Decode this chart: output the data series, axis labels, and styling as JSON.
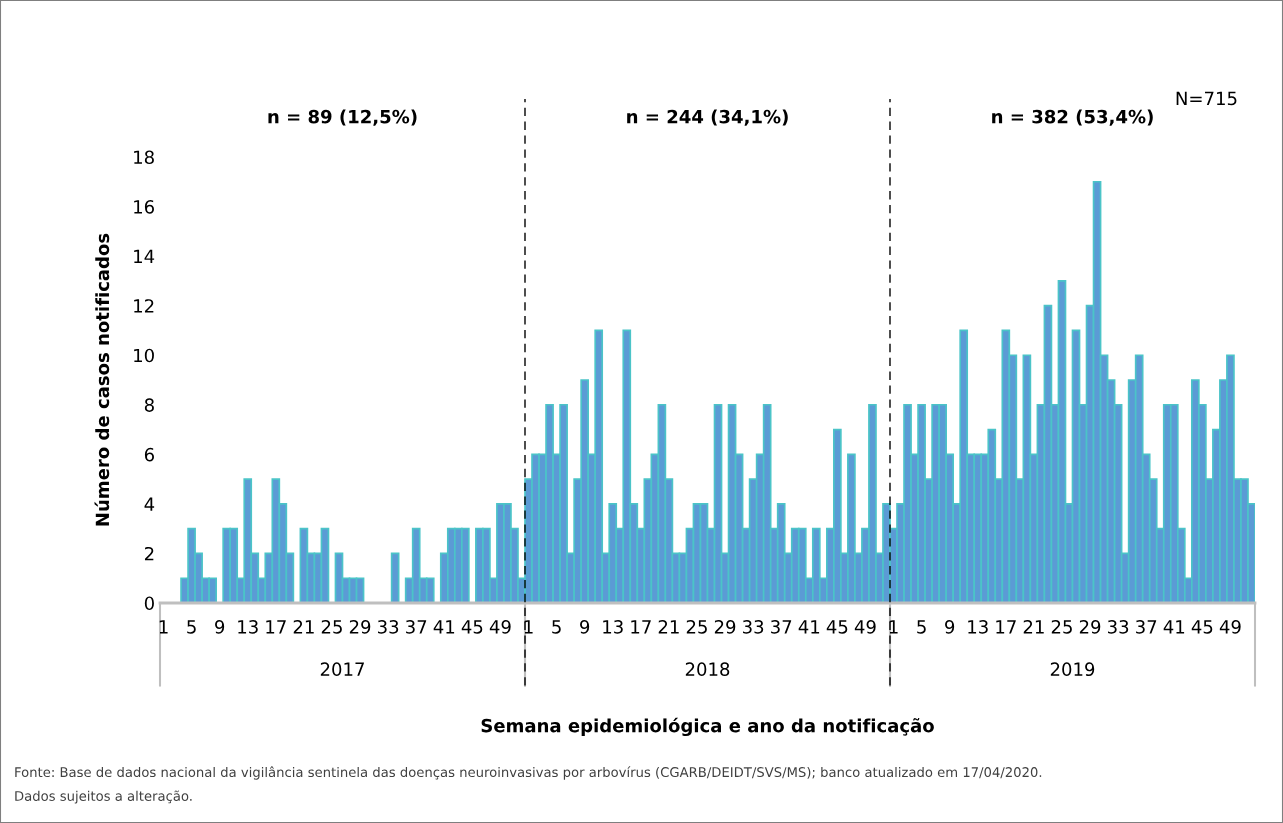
{
  "chart_data": {
    "type": "bar",
    "xlabel": "Semana epidemiológica e ano da notificação",
    "ylabel": "Número de casos notificados",
    "categories": [
      "1",
      null,
      null,
      null,
      "5",
      null,
      null,
      null,
      "9",
      null,
      null,
      null,
      "13",
      null,
      null,
      null,
      "17",
      null,
      null,
      null,
      "21",
      null,
      null,
      null,
      "25",
      null,
      null,
      null,
      "29",
      null,
      null,
      null,
      "33",
      null,
      null,
      null,
      "37",
      null,
      null,
      null,
      "41",
      null,
      null,
      null,
      "45",
      null,
      null,
      null,
      "49",
      null,
      null,
      null,
      "1",
      null,
      null,
      null,
      "5",
      null,
      null,
      null,
      "9",
      null,
      null,
      null,
      "13",
      null,
      null,
      null,
      "17",
      null,
      null,
      null,
      "21",
      null,
      null,
      null,
      "25",
      null,
      null,
      null,
      "29",
      null,
      null,
      null,
      "33",
      null,
      null,
      null,
      "37",
      null,
      null,
      null,
      "41",
      null,
      null,
      null,
      "45",
      null,
      null,
      null,
      "49",
      null,
      null,
      null,
      "1",
      null,
      null,
      null,
      "5",
      null,
      null,
      null,
      "9",
      null,
      null,
      null,
      "13",
      null,
      null,
      null,
      "17",
      null,
      null,
      null,
      "21",
      null,
      null,
      null,
      "25",
      null,
      null,
      null,
      "29",
      null,
      null,
      null,
      "33",
      null,
      null,
      null,
      "37",
      null,
      null,
      null,
      "41",
      null,
      null,
      null,
      "45",
      null,
      null,
      null,
      "49",
      null,
      null,
      null
    ],
    "series": [
      {
        "color": "#5b9bd5",
        "values": [
          0,
          0,
          0,
          1,
          3,
          2,
          1,
          1,
          0,
          3,
          3,
          1,
          5,
          2,
          1,
          2,
          5,
          4,
          2,
          0,
          3,
          2,
          2,
          3,
          0,
          2,
          1,
          1,
          1,
          0,
          0,
          0,
          0,
          2,
          0,
          1,
          3,
          1,
          1,
          0,
          2,
          3,
          3,
          3,
          0,
          3,
          3,
          1,
          4,
          4,
          3,
          1,
          5,
          6,
          6,
          8,
          6,
          8,
          2,
          5,
          9,
          6,
          11,
          2,
          4,
          3,
          11,
          4,
          3,
          5,
          6,
          8,
          5,
          2,
          2,
          3,
          4,
          4,
          3,
          8,
          2,
          8,
          6,
          3,
          5,
          6,
          8,
          3,
          4,
          2,
          3,
          3,
          1,
          3,
          1,
          3,
          7,
          2,
          6,
          2,
          3,
          8,
          2,
          4,
          3,
          4,
          8,
          6,
          8,
          5,
          8,
          8,
          6,
          4,
          11,
          6,
          6,
          6,
          7,
          5,
          11,
          10,
          5,
          10,
          6,
          8,
          12,
          8,
          13,
          4,
          11,
          8,
          12,
          17,
          10,
          9,
          8,
          2,
          9,
          10,
          6,
          5,
          3,
          8,
          8,
          3,
          1,
          9,
          8,
          5,
          7,
          9,
          10,
          5,
          5,
          4
        ]
      }
    ],
    "ylim": [
      0,
      18
    ],
    "yticks": [
      0,
      2,
      4,
      6,
      8,
      10,
      12,
      14,
      16,
      18
    ],
    "grid": false,
    "legend": false,
    "annotations": [
      "N=715",
      "n = 89 (12,5%)",
      "n = 244 (34,1%)",
      "n = 382 (53,4%)",
      "2017",
      "2018",
      "2019",
      "Fonte: Base de dados nacional da vigilância sentinela das doenças neuroinvasivas por arbovírus (CGARB/DEIDT/SVS/MS); banco atualizado em 17/04/2020.",
      "Dados sujeitos a alteração."
    ]
  }
}
